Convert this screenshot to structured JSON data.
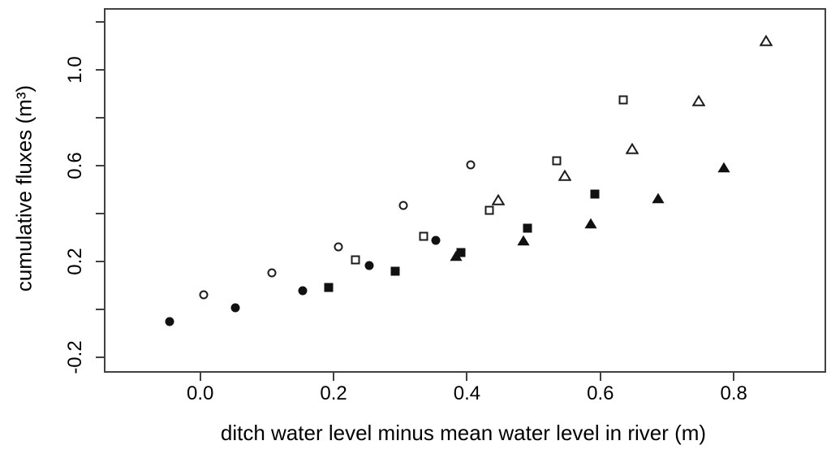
{
  "figure": {
    "background_color": "#ffffff",
    "axis_color": "#414141",
    "marker_color": "#111111",
    "text_color": "#000000"
  },
  "chart_data": {
    "type": "scatter",
    "title": "",
    "xlabel": "ditch water level minus mean water level in river (m)",
    "ylabel": "cumulative fluxes (m³)",
    "xlim": [
      -0.142,
      0.936
    ],
    "ylim": [
      -0.258,
      1.251
    ],
    "grid": false,
    "legend": "none",
    "x_ticks": [
      0.0,
      0.2,
      0.4,
      0.6,
      0.8
    ],
    "x_tick_labels": [
      "0.0",
      "0.2",
      "0.4",
      "0.6",
      "0.8"
    ],
    "y_ticks": [
      -0.2,
      0.0,
      0.2,
      0.4,
      0.6,
      0.8,
      1.0,
      1.2
    ],
    "y_tick_labels": [
      "-0.2",
      "",
      "0.2",
      "",
      "0.6",
      "",
      "1.0",
      ""
    ],
    "series": [
      {
        "name": "open-circle-series",
        "marker": "circle",
        "fill": "open",
        "points": [
          [
            0.005,
            0.06
          ],
          [
            0.107,
            0.153
          ],
          [
            0.207,
            0.261
          ],
          [
            0.305,
            0.435
          ],
          [
            0.406,
            0.603
          ]
        ]
      },
      {
        "name": "filled-circle-series",
        "marker": "circle",
        "fill": "solid",
        "points": [
          [
            -0.046,
            -0.051
          ],
          [
            0.053,
            0.007
          ],
          [
            0.154,
            0.078
          ],
          [
            0.253,
            0.183
          ],
          [
            0.353,
            0.288
          ]
        ]
      },
      {
        "name": "open-square-series",
        "marker": "square",
        "fill": "open",
        "points": [
          [
            0.233,
            0.207
          ],
          [
            0.335,
            0.305
          ],
          [
            0.434,
            0.414
          ],
          [
            0.535,
            0.62
          ],
          [
            0.634,
            0.875
          ]
        ]
      },
      {
        "name": "filled-square-series",
        "marker": "square",
        "fill": "solid",
        "points": [
          [
            0.192,
            0.092
          ],
          [
            0.292,
            0.159
          ],
          [
            0.391,
            0.237
          ],
          [
            0.491,
            0.339
          ],
          [
            0.592,
            0.481
          ]
        ]
      },
      {
        "name": "open-triangle-series",
        "marker": "triangle",
        "fill": "open",
        "points": [
          [
            0.447,
            0.458
          ],
          [
            0.547,
            0.559
          ],
          [
            0.648,
            0.671
          ],
          [
            0.748,
            0.871
          ],
          [
            0.848,
            1.122
          ]
        ]
      },
      {
        "name": "filled-triangle-series",
        "marker": "triangle",
        "fill": "solid",
        "points": [
          [
            0.384,
            0.222
          ],
          [
            0.485,
            0.288
          ],
          [
            0.585,
            0.359
          ],
          [
            0.686,
            0.464
          ],
          [
            0.785,
            0.593
          ]
        ]
      }
    ]
  }
}
